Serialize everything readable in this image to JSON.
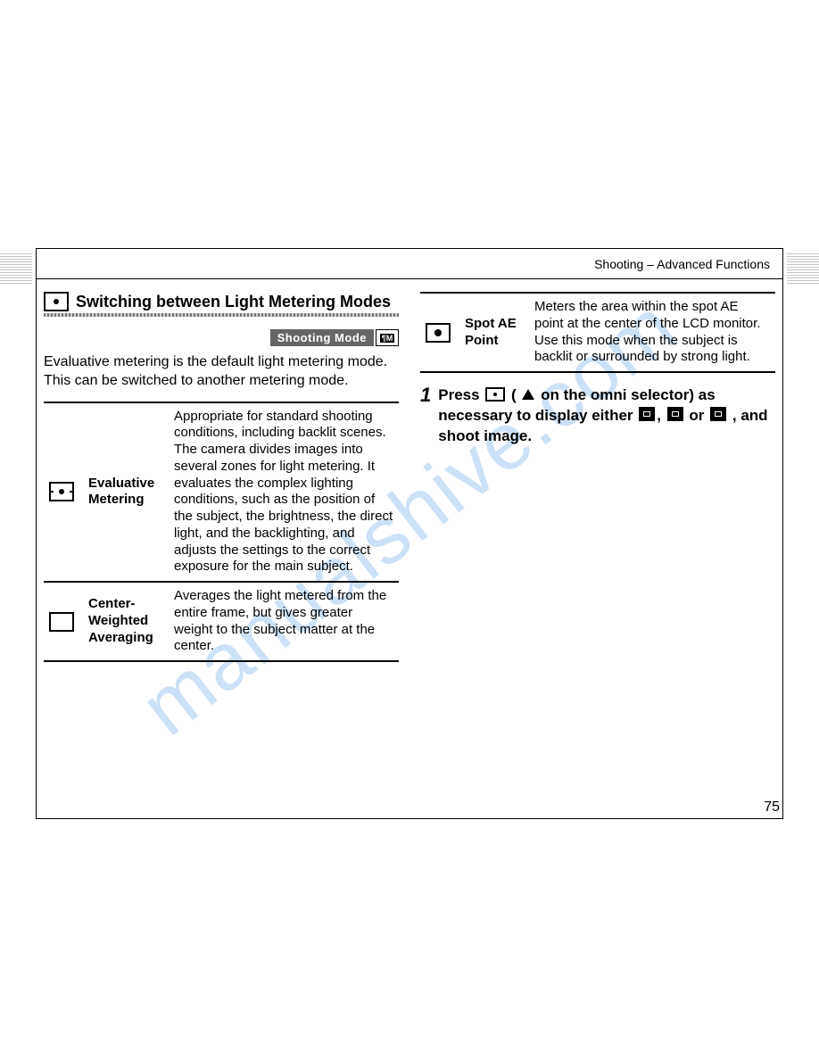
{
  "header": {
    "breadcrumb": "Shooting – Advanced Functions"
  },
  "section": {
    "title": "Switching between Light Metering Modes",
    "shooting_mode_label": "Shooting Mode",
    "intro": "Evaluative metering is the default light metering mode. This can be switched to another metering mode."
  },
  "table_left": {
    "rows": [
      {
        "label": "Evaluative Metering",
        "desc": "Appropriate for standard shooting conditions, including backlit scenes. The camera divides images into several zones for light metering. It evaluates the complex lighting conditions, such as the position of the subject, the brightness, the direct light, and the backlighting, and adjusts the settings to the correct exposure for the main subject."
      },
      {
        "label": "Center-Weighted Averaging",
        "desc": "Averages the light metered from the entire frame, but gives greater weight to the subject matter at the center."
      }
    ]
  },
  "table_right": {
    "rows": [
      {
        "label": "Spot AE Point",
        "desc": "Meters the area within the spot AE point at the center of the LCD monitor. Use this mode when the subject is backlit or surrounded by strong light."
      }
    ]
  },
  "instruction": {
    "step": "1",
    "text_1": "Press ",
    "text_2": " ( ",
    "text_3": " on the omni selector) as necessary to display either ",
    "text_4": ", ",
    "text_5": " or ",
    "text_6": " , and shoot image."
  },
  "page_number": "75",
  "watermark_text": "manualshive.com",
  "colors": {
    "border": "#000000",
    "badge_bg": "#666666",
    "underline_a": "#777777",
    "underline_b": "#cccccc",
    "watermark": "rgba(110,170,230,0.35)"
  }
}
